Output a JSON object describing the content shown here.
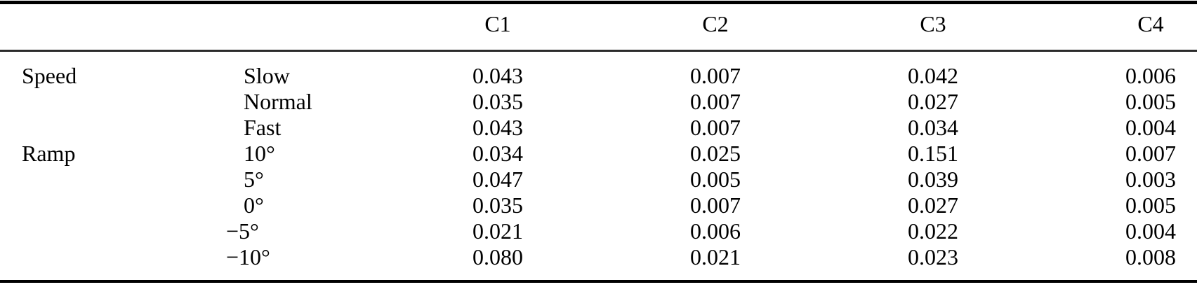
{
  "table": {
    "columns": [
      "C1",
      "C2",
      "C3",
      "C4"
    ],
    "groups": [
      {
        "label": "Speed",
        "rows": [
          {
            "condition": "Slow",
            "values": [
              "0.043",
              "0.007",
              "0.042",
              "0.006"
            ]
          },
          {
            "condition": "Normal",
            "values": [
              "0.035",
              "0.007",
              "0.027",
              "0.005"
            ]
          },
          {
            "condition": "Fast",
            "values": [
              "0.043",
              "0.007",
              "0.034",
              "0.004"
            ]
          }
        ]
      },
      {
        "label": "Ramp",
        "rows": [
          {
            "condition": "10°",
            "values": [
              "0.034",
              "0.025",
              "0.151",
              "0.007"
            ]
          },
          {
            "condition": "5°",
            "values": [
              "0.047",
              "0.005",
              "0.039",
              "0.003"
            ]
          },
          {
            "condition": "0°",
            "values": [
              "0.035",
              "0.007",
              "0.027",
              "0.005"
            ]
          },
          {
            "condition": "−5°",
            "values": [
              "0.021",
              "0.006",
              "0.022",
              "0.004"
            ]
          },
          {
            "condition": "−10°",
            "values": [
              "0.080",
              "0.021",
              "0.023",
              "0.008"
            ]
          }
        ]
      }
    ],
    "style": {
      "rule_color_heavy": "#000000",
      "rule_color_light": "#2b2b2b",
      "text_color": "#000000",
      "background": "#ffffff"
    }
  },
  "chart_data": {
    "type": "table",
    "title": "",
    "columns": [
      "",
      "",
      "C1",
      "C2",
      "C3",
      "C4"
    ],
    "rows": [
      [
        "Speed",
        "Slow",
        0.043,
        0.007,
        0.042,
        0.006
      ],
      [
        "",
        "Normal",
        0.035,
        0.007,
        0.027,
        0.005
      ],
      [
        "",
        "Fast",
        0.043,
        0.007,
        0.034,
        0.004
      ],
      [
        "Ramp",
        "10°",
        0.034,
        0.025,
        0.151,
        0.007
      ],
      [
        "",
        "5°",
        0.047,
        0.005,
        0.039,
        0.003
      ],
      [
        "",
        "0°",
        0.035,
        0.007,
        0.027,
        0.005
      ],
      [
        "",
        "−5°",
        0.021,
        0.006,
        0.022,
        0.004
      ],
      [
        "",
        "−10°",
        0.08,
        0.021,
        0.023,
        0.008
      ]
    ]
  }
}
